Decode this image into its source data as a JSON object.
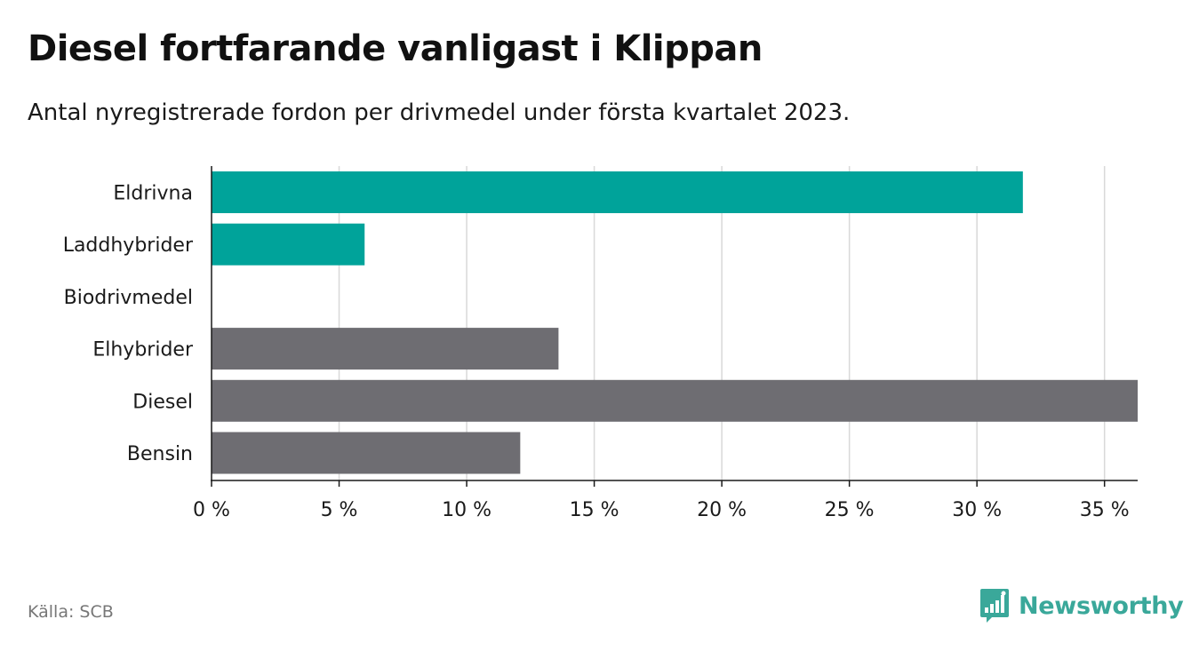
{
  "title": "Diesel fortfarande vanligast i Klippan",
  "subtitle": "Antal nyregistrerade fordon per drivmedel under första kvartalet 2023.",
  "source": "Källa: SCB",
  "brand": {
    "name": "Newsworthy",
    "icon": "newsworthy-logo-icon",
    "color": "#3aa89a"
  },
  "colors": {
    "highlight": "#00a39a",
    "default": "#6e6d72",
    "grid": "#d9d9d9",
    "axis": "#1a1a1a"
  },
  "chart_data": {
    "type": "bar",
    "orientation": "horizontal",
    "categories": [
      "Eldrivna",
      "Laddhybrider",
      "Biodrivmedel",
      "Elhybrider",
      "Diesel",
      "Bensin"
    ],
    "values": [
      31.8,
      6.0,
      0,
      13.6,
      36.3,
      12.1
    ],
    "highlighted": [
      true,
      true,
      false,
      false,
      false,
      false
    ],
    "xlim": [
      0,
      36.3
    ],
    "xticks": [
      0,
      5,
      10,
      15,
      20,
      25,
      30,
      35
    ],
    "xtick_labels": [
      "0 %",
      "5 %",
      "10 %",
      "15 %",
      "20 %",
      "25 %",
      "30 %",
      "35 %"
    ],
    "grid": true,
    "xlabel": "",
    "ylabel": ""
  }
}
